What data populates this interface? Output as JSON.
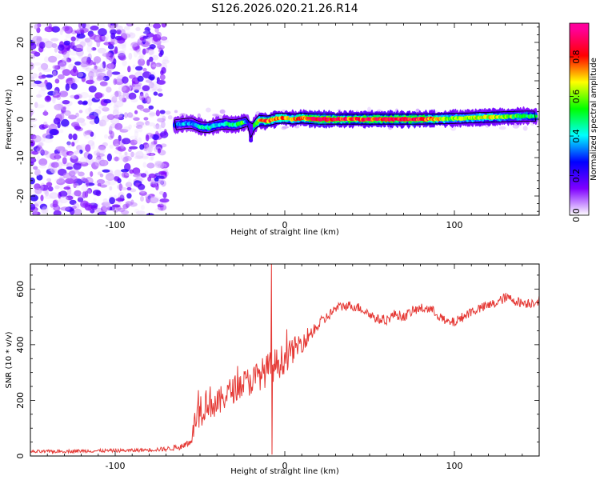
{
  "chart_data": [
    {
      "type": "heatmap",
      "title": "S126.2026.020.21.26.R14",
      "xlabel": "Height of straight line (km)",
      "ylabel": "Frequency (Hz)",
      "xlim": [
        -150,
        150
      ],
      "ylim": [
        -25,
        25
      ],
      "x_ticks": [
        -100,
        0,
        100
      ],
      "x_tick_labels": [
        "-100",
        "0",
        "100"
      ],
      "y_ticks": [
        -20,
        -10,
        0,
        10,
        20
      ],
      "y_tick_labels": [
        "-20",
        "-10",
        "0",
        "10",
        "20"
      ],
      "noise_region_x": [
        -150,
        -70
      ],
      "ridge": {
        "x": [
          -65,
          -60,
          -55,
          -50,
          -45,
          -40,
          -35,
          -30,
          -25,
          -22,
          -20,
          -18,
          -15,
          -10,
          -5,
          0,
          5,
          10,
          20,
          40,
          60,
          80,
          100,
          120,
          140,
          148
        ],
        "frequency": [
          -1.5,
          -1.2,
          -1.0,
          -2.0,
          -2.2,
          -1.5,
          -1.2,
          -1.5,
          -1.0,
          -0.5,
          -3.5,
          -1.5,
          -0.3,
          -0.5,
          0.2,
          0.3,
          0.0,
          0.3,
          0.0,
          0.0,
          0.0,
          0.0,
          0.2,
          0.5,
          0.8,
          0.8
        ],
        "amplitude": [
          0.3,
          0.4,
          0.35,
          0.45,
          0.5,
          0.4,
          0.45,
          0.5,
          0.6,
          0.3,
          0.2,
          0.55,
          0.7,
          0.85,
          0.8,
          0.75,
          0.7,
          0.8,
          0.95,
          0.85,
          0.9,
          0.9,
          0.6,
          0.7,
          0.55,
          0.5
        ]
      },
      "colorbar": {
        "label": "Normalized spectral amplitude",
        "range": [
          0,
          1
        ],
        "ticks": [
          "0.0",
          "0.2",
          "0.4",
          "0.6",
          "0.8"
        ],
        "tick_values": [
          0.0,
          0.2,
          0.4,
          0.6,
          0.8
        ],
        "max_value": 0.97,
        "colors": [
          "#ffffff",
          "#7f00ff",
          "#0000ff",
          "#00ffff",
          "#00ff00",
          "#ffff00",
          "#ff0000",
          "#ff0099"
        ]
      }
    },
    {
      "type": "line",
      "xlabel": "Height of straight line (km)",
      "ylabel": "SNR (10 * v/v)",
      "xlim": [
        -150,
        150
      ],
      "ylim": [
        0,
        690
      ],
      "x_ticks": [
        -100,
        0,
        100
      ],
      "x_tick_labels": [
        "-100",
        "0",
        "100"
      ],
      "y_ticks": [
        0,
        200,
        400,
        600
      ],
      "y_tick_labels": [
        "0",
        "200",
        "400",
        "600"
      ],
      "series": [
        {
          "name": "SNR",
          "color": "#e53935",
          "x": [
            -150,
            -120,
            -90,
            -70,
            -60,
            -55,
            -52,
            -50,
            -45,
            -40,
            -35,
            -30,
            -25,
            -20,
            -15,
            -10,
            -8,
            -5,
            0,
            5,
            10,
            15,
            20,
            25,
            30,
            35,
            40,
            45,
            50,
            55,
            60,
            65,
            70,
            75,
            80,
            85,
            90,
            95,
            100,
            105,
            110,
            115,
            120,
            125,
            130,
            135,
            140,
            145,
            150
          ],
          "y": [
            15,
            18,
            20,
            25,
            35,
            60,
            150,
            170,
            200,
            180,
            220,
            240,
            260,
            270,
            290,
            310,
            690,
            330,
            350,
            380,
            410,
            440,
            470,
            500,
            530,
            540,
            540,
            530,
            510,
            490,
            490,
            510,
            500,
            520,
            530,
            530,
            510,
            480,
            480,
            500,
            520,
            530,
            540,
            550,
            570,
            560,
            550,
            550,
            560
          ],
          "noise_amplitude": [
            6,
            6,
            6,
            8,
            12,
            20,
            60,
            70,
            60,
            55,
            50,
            50,
            50,
            55,
            55,
            60,
            0,
            60,
            55,
            45,
            40,
            30,
            25,
            20,
            18,
            18,
            18,
            18,
            18,
            18,
            18,
            18,
            18,
            18,
            18,
            18,
            18,
            18,
            18,
            18,
            18,
            18,
            18,
            18,
            18,
            18,
            18,
            18,
            18
          ]
        }
      ]
    }
  ]
}
